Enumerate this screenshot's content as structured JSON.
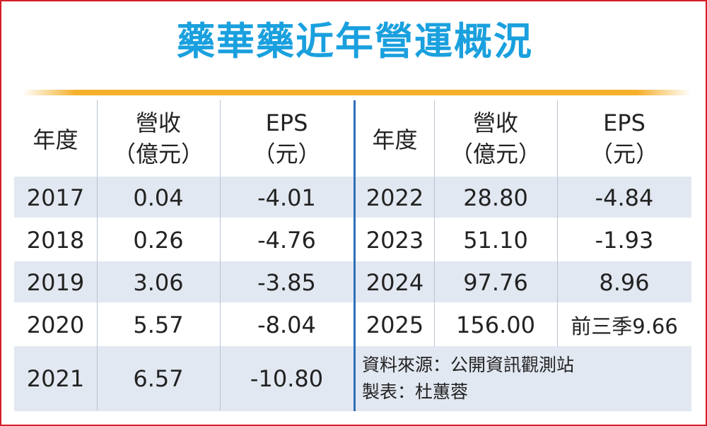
{
  "title": "藥華藥近年營運概況",
  "header": {
    "year": "年度",
    "revenue_line1": "營收",
    "revenue_line2": "（億元）",
    "eps_line1": "EPS",
    "eps_line2": "（元）"
  },
  "rows_left": [
    {
      "year": "2017",
      "revenue": "0.04",
      "eps": "-4.01"
    },
    {
      "year": "2018",
      "revenue": "0.26",
      "eps": "-4.76"
    },
    {
      "year": "2019",
      "revenue": "3.06",
      "eps": "-3.85"
    },
    {
      "year": "2020",
      "revenue": "5.57",
      "eps": "-8.04"
    },
    {
      "year": "2021",
      "revenue": "6.57",
      "eps": "-10.80"
    }
  ],
  "rows_right": [
    {
      "year": "2022",
      "revenue": "28.80",
      "eps": "-4.84"
    },
    {
      "year": "2023",
      "revenue": "51.10",
      "eps": "-1.93"
    },
    {
      "year": "2024",
      "revenue": "97.76",
      "eps": "8.96"
    },
    {
      "year": "2025",
      "revenue": "156.00",
      "eps": "前三季9.66"
    }
  ],
  "source_note": "資料來源：公開資訊觀測站",
  "maker_note": "製表：杜蕙蓉",
  "colors": {
    "title": "#1aa0de",
    "rule": "#f5b02c",
    "band": "#e2e8f1",
    "frame": "#d61f2a",
    "divider": "#2e6fb8"
  }
}
